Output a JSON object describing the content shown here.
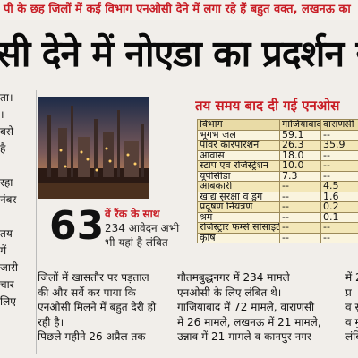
{
  "strap": "पी के छह जिलों में कई विभाग एनओसी देने में लगा रहे हैं बहुत वक्त, लखनऊ का",
  "headline": "सी देने में नोएडा का प्रदर्शन स",
  "left_column": [
    "ता।",
    "।",
    "बसे",
    "है",
    "",
    "रहा",
    "नंबर",
    "",
    "तय",
    "में",
    "जारी",
    "चार",
    "लिए"
  ],
  "photo": {
    "description_icon": "industrial-plant-photo"
  },
  "caption": {
    "number": "63",
    "lines": [
      "वें रैंक के साथ",
      "234 आवेदन अभी",
      "भी यहां है लंबित"
    ]
  },
  "table": {
    "title": "तय समय बाद दी गई एनओस",
    "headers": [
      "विभाग",
      "गाजियाबाद",
      "वाराणसी"
    ],
    "rows": [
      [
        "भूगर्भ जल",
        "59.1",
        "--"
      ],
      [
        "पावर कारपोरेशन",
        "26.3",
        "35.9"
      ],
      [
        "आवास",
        "18.0",
        "--"
      ],
      [
        "स्टांप एवं रजिस्ट्रेशन",
        "10.0",
        "--"
      ],
      [
        "यूपीसीडा",
        "7.3",
        "--"
      ],
      [
        "आबकारी",
        "--",
        "4.5"
      ],
      [
        "खाद्य सुरक्षा व ड्रग",
        "--",
        "1.6"
      ],
      [
        "प्रदूषण नियंत्रण",
        "--",
        "0.2"
      ],
      [
        "श्रम",
        "--",
        "0.1"
      ],
      [
        "रजिस्ट्रार फर्म्स सोसाइटी",
        "--",
        "--"
      ],
      [
        "कृषि",
        "--",
        "--"
      ]
    ]
  },
  "col1": [
    "जिलों में खासतौर पर पड़ताल",
    "की और सर्वे कर पाया कि",
    "एनओसी मिलने में बहुत देरी हो",
    "रही है।",
    "     पिछले महीने 26 अप्रैल तक"
  ],
  "col2": [
    "गौतमबुद्धनगर में 234 मामले",
    "एनओसी के लिए लंबित थे।",
    "गाजियाबाद में 72 मामले, वाराणसी",
    "में 26 मामले, लखनऊ में 21 मामले,",
    "उन्नाव में 21 मामले व कानपुर नगर"
  ],
  "col3": [
    "में 20",
    "प्र",
    "व सुर",
    "व मुख्",
    "लंबि"
  ]
}
